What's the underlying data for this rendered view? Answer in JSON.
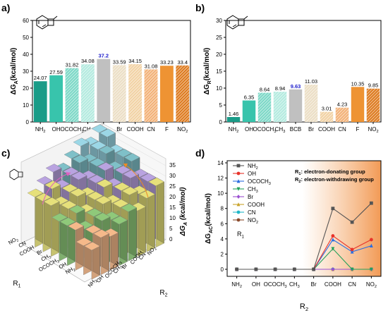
{
  "chart_data": [
    {
      "panel": "a)",
      "type": "bar",
      "ylabel": "ΔG_A(kcal/mol)",
      "ylim": [
        0,
        60
      ],
      "yticks": [
        0,
        10,
        20,
        30,
        40,
        50,
        60
      ],
      "categories": [
        "NH2",
        "OH",
        "OCOCH3",
        "CH3",
        "BCB",
        "Br",
        "COOH",
        "CN",
        "F",
        "NO2"
      ],
      "values": [
        24.07,
        27.59,
        31.82,
        34.08,
        37.2,
        33.59,
        34.15,
        31.08,
        33.23,
        33.4
      ],
      "value_labels": [
        "24.07",
        "27.59",
        "31.82",
        "34.08",
        "37.2",
        "33.59",
        "34.15",
        "31.08",
        "33.23",
        "33.4"
      ],
      "colors": [
        "#1a9c88",
        "#38c4ac",
        "#7fd9c8",
        "#b5ebe0",
        "#c0c0c0",
        "#ecdfc6",
        "#f2d3a6",
        "#f3b37a",
        "#ee9333",
        "#de7d23"
      ],
      "patterns": [
        "solid",
        "solid",
        "hatch",
        "hatch",
        "solid",
        "hatch",
        "hatch",
        "hatch",
        "solid",
        "hatch"
      ],
      "highlight_index": 4,
      "highlight_color": "#2222cc"
    },
    {
      "panel": "b)",
      "type": "bar",
      "ylabel": "ΔG_R(kcal/mol)",
      "ylim": [
        0,
        30
      ],
      "yticks": [
        0,
        5,
        10,
        15,
        20,
        25,
        30
      ],
      "categories": [
        "NH2",
        "OH",
        "OCOCH3",
        "CH3",
        "BCB",
        "Br",
        "COOH",
        "CN",
        "F",
        "NO2"
      ],
      "values": [
        1.46,
        6.35,
        8.64,
        8.94,
        9.63,
        11.03,
        3.01,
        4.23,
        10.35,
        9.85
      ],
      "value_labels": [
        "1.46",
        "6.35",
        "8.64",
        "8.94",
        "9.63",
        "11.03",
        "3.01",
        "4.23",
        "10.35",
        "9.85"
      ],
      "colors": [
        "#1a9c88",
        "#38c4ac",
        "#7fd9c8",
        "#b5ebe0",
        "#c0c0c0",
        "#ecdfc6",
        "#f2d3a6",
        "#f3b37a",
        "#ee9333",
        "#de7d23"
      ],
      "patterns": [
        "solid",
        "solid",
        "hatch",
        "hatch",
        "solid",
        "hatch",
        "hatch",
        "hatch",
        "solid",
        "hatch"
      ],
      "highlight_index": 4,
      "highlight_color": "#2222cc"
    },
    {
      "panel": "c)",
      "type": "bar3d",
      "zlabel": "ΔG_A (kcal/mol)",
      "zticks": [
        "0",
        "5",
        "10",
        "15",
        "20",
        "25",
        "30",
        "35"
      ],
      "r1_label": "R1",
      "r2_label": "R2",
      "r1_categories": [
        "NO2",
        "CN",
        "COOH",
        "Br",
        "CH3",
        "OCOCH3",
        "OH",
        "NH2"
      ],
      "r2_categories": [
        "NH2",
        "OH",
        "OCOCH3",
        "CH3",
        "Br",
        "COOH",
        "CN",
        "NO2"
      ],
      "layer_colors": [
        "#f5b98a",
        "#8fc97a",
        "#e6e07a",
        "#b9a3e0",
        "#7fc0c8",
        "#9bd7e6"
      ]
    },
    {
      "panel": "d)",
      "type": "line",
      "xlabel": "R2",
      "ylabel": "ΔG_AC(kcal/mol)",
      "ylim": [
        0,
        14
      ],
      "yticks": [
        0,
        2,
        4,
        6,
        8,
        10,
        12,
        14
      ],
      "categories": [
        "NH2",
        "OH",
        "OCOCH3",
        "CH3",
        "Br",
        "COOH",
        "CN",
        "NO2"
      ],
      "series": [
        {
          "name": "NH2",
          "color": "#555555",
          "marker": "square",
          "values": [
            0,
            0,
            0,
            0,
            0,
            8.0,
            6.2,
            8.7
          ]
        },
        {
          "name": "OH",
          "color": "#e8332a",
          "marker": "circle",
          "values": [
            0,
            0,
            0,
            0,
            0,
            4.4,
            2.6,
            3.9
          ]
        },
        {
          "name": "OCOCH3",
          "color": "#2a6de0",
          "marker": "triangle",
          "values": [
            0,
            0,
            0,
            0,
            0,
            3.9,
            2.3,
            3.1
          ]
        },
        {
          "name": "CH3",
          "color": "#22a05a",
          "marker": "tridown",
          "values": [
            0,
            0,
            0,
            0,
            0,
            2.7,
            0,
            0
          ]
        },
        {
          "name": "Br",
          "color": "#9a4fd0",
          "marker": "diamond",
          "values": [
            0,
            0,
            0,
            0,
            0,
            0,
            0,
            0
          ]
        },
        {
          "name": "COOH",
          "color": "#c9a32b",
          "marker": "triangle",
          "values": [
            0,
            0,
            0,
            0,
            0,
            0,
            0,
            0
          ]
        },
        {
          "name": "CN",
          "color": "#22b7c8",
          "marker": "circle",
          "values": [
            0,
            0,
            0,
            0,
            0,
            0,
            0,
            0
          ]
        },
        {
          "name": "NO2",
          "color": "#8a4a2c",
          "marker": "circle",
          "values": [
            0,
            0,
            0,
            0,
            0,
            0,
            0,
            0
          ]
        }
      ],
      "r1_label": "R1",
      "annotations": [
        "R1: electron-donating group",
        "R2: electron-withdrawing group"
      ],
      "shade_from_category_index": 4.5
    }
  ]
}
